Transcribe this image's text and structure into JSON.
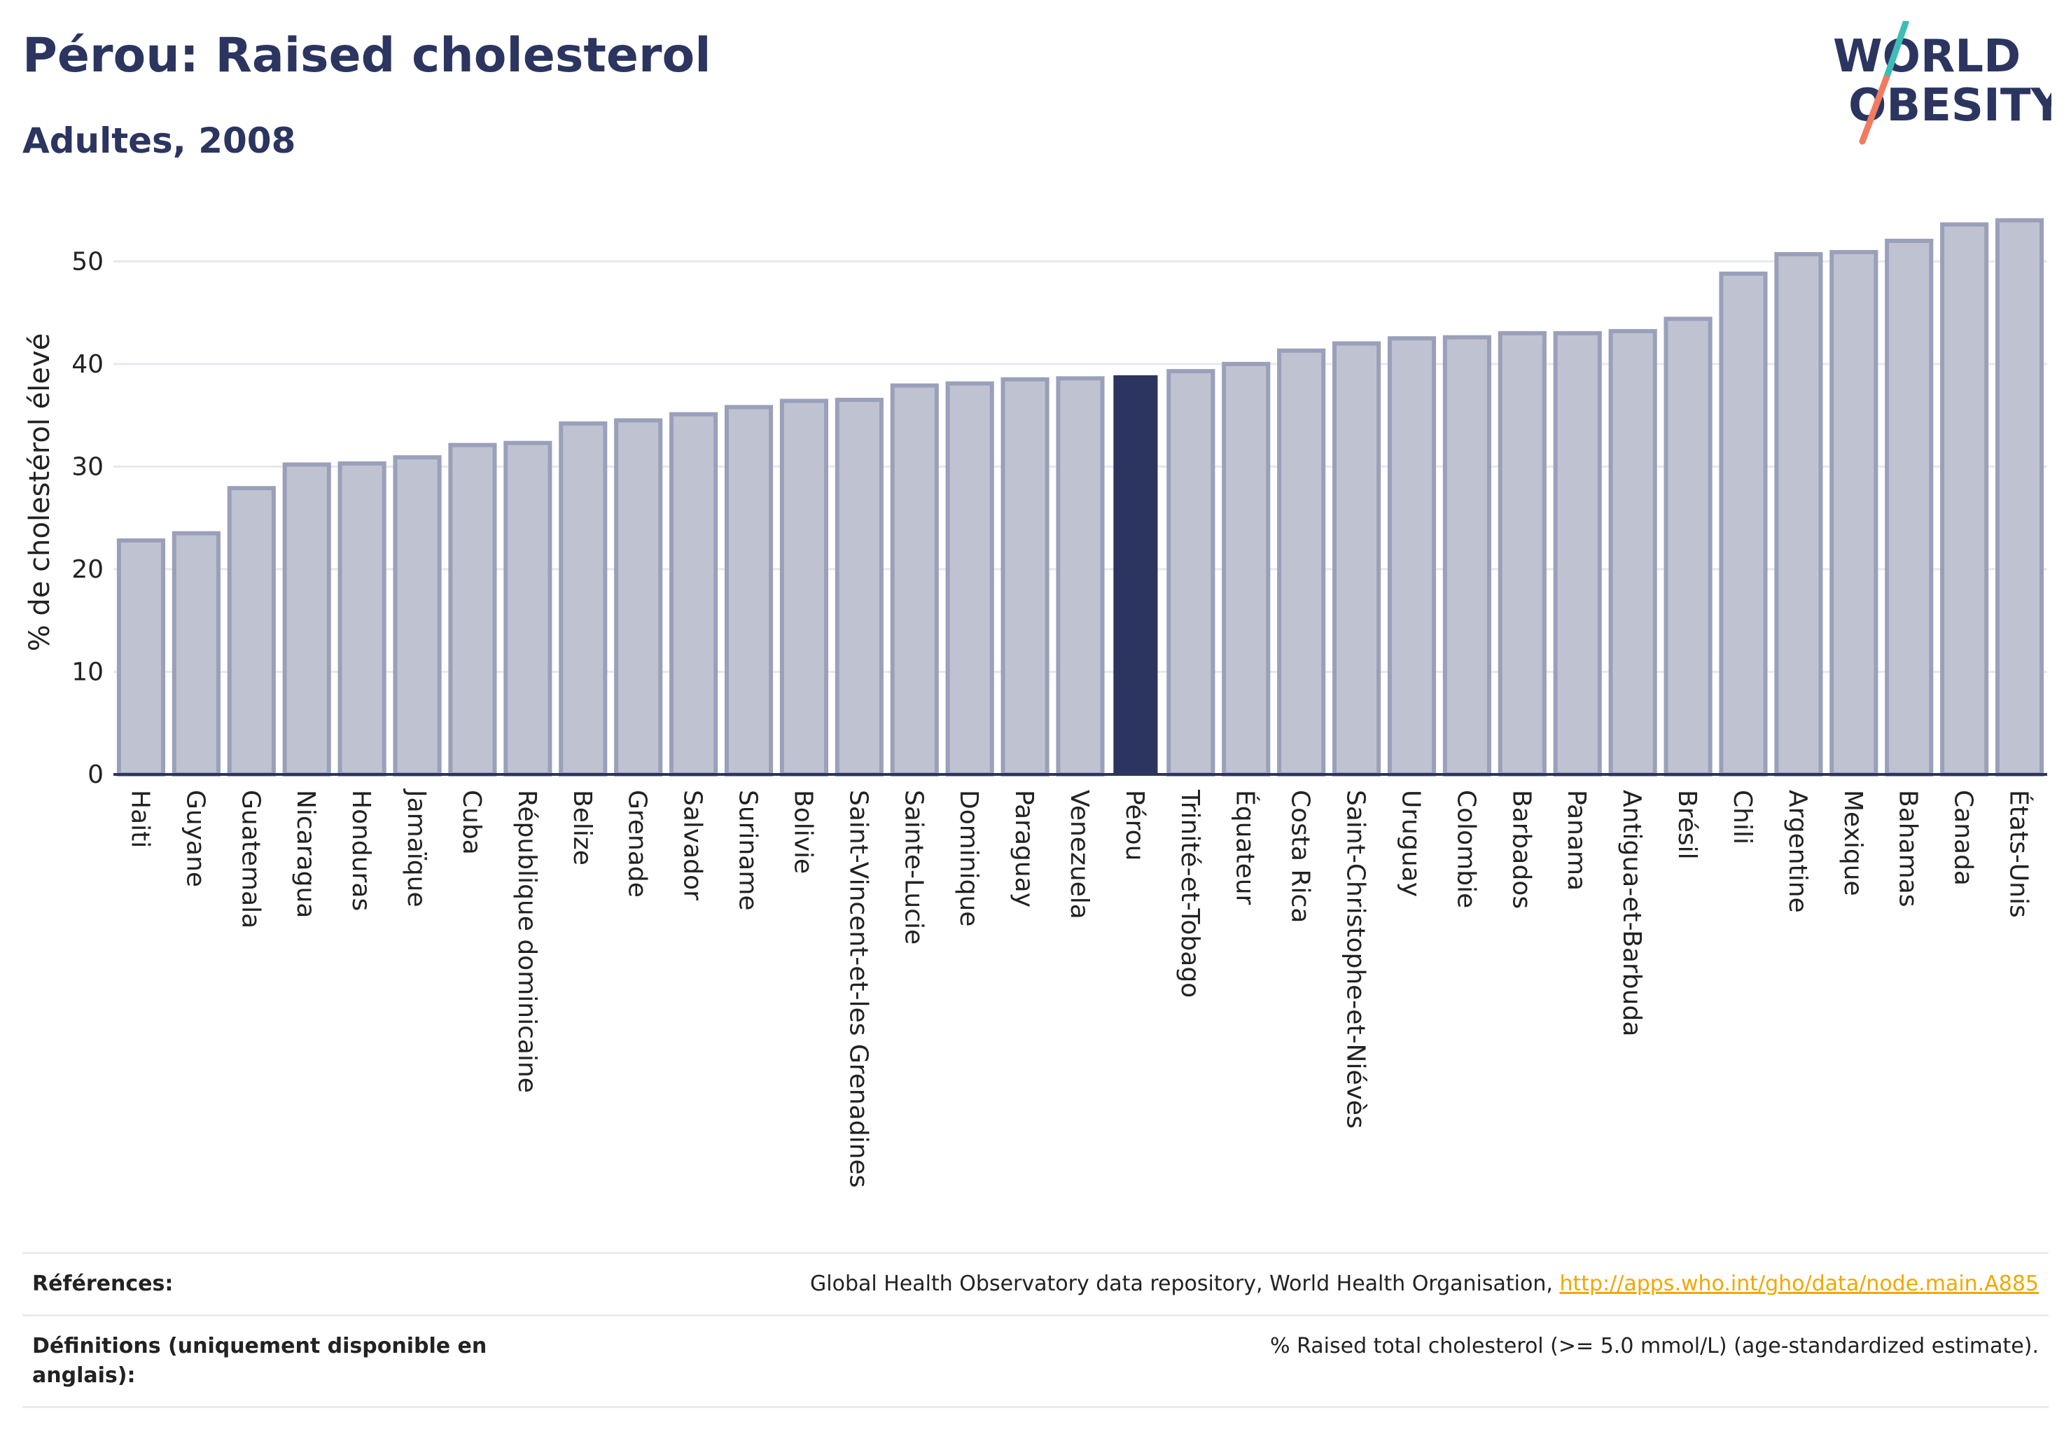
{
  "header": {
    "title": "Pérou: Raised cholesterol",
    "subtitle": "Adultes, 2008"
  },
  "logo": {
    "line1": "WORLD",
    "line2": "OBESITY",
    "colors": {
      "text": "#2b3560",
      "slash_teal": "#3dbdb5",
      "slash_coral": "#f07b61"
    }
  },
  "colors": {
    "bar_fill": "#bfc3d1",
    "bar_stroke": "#9aa0ba",
    "highlight_fill": "#2b3560",
    "grid": "#e6e8ee",
    "axis": "#2b3560"
  },
  "chart_data": {
    "type": "bar",
    "title": "",
    "xlabel": "",
    "ylabel": "% de cholestérol élevé",
    "ylim": [
      0,
      55
    ],
    "yticks": [
      0,
      10,
      20,
      30,
      40,
      50
    ],
    "grid": true,
    "highlight": "Pérou",
    "categories": [
      "Haiti",
      "Guyane",
      "Guatemala",
      "Nicaragua",
      "Honduras",
      "Jamaïque",
      "Cuba",
      "République dominicaine",
      "Belize",
      "Grenade",
      "Salvador",
      "Suriname",
      "Bolivie",
      "Saint-Vincent-et-les Grenadines",
      "Sainte-Lucie",
      "Dominique",
      "Paraguay",
      "Venezuela",
      "Pérou",
      "Trinité-et-Tobago",
      "Équateur",
      "Costa Rica",
      "Saint-Christophe-et-Niévès",
      "Uruguay",
      "Colombie",
      "Barbados",
      "Panama",
      "Antigua-et-Barbuda",
      "Brésil",
      "Chili",
      "Argentine",
      "Mexique",
      "Bahamas",
      "Canada",
      "États-Unis"
    ],
    "values": [
      22.8,
      23.5,
      27.9,
      30.2,
      30.3,
      30.9,
      32.1,
      32.3,
      34.2,
      34.5,
      35.1,
      35.8,
      36.4,
      36.5,
      37.9,
      38.1,
      38.5,
      38.6,
      38.9,
      39.3,
      40.0,
      41.3,
      42.0,
      42.5,
      42.6,
      43.0,
      43.0,
      43.2,
      44.4,
      48.8,
      50.7,
      50.9,
      52.0,
      53.6,
      54.0
    ]
  },
  "references": {
    "label": "Références:",
    "text": "Global Health Observatory data repository, World Health Organisation, ",
    "link": "http://apps.who.int/gho/data/node.main.A885"
  },
  "definitions": {
    "label": "Définitions (uniquement disponible en anglais):",
    "text": "% Raised total cholesterol (>= 5.0 mmol/L) (age-standardized estimate)."
  }
}
